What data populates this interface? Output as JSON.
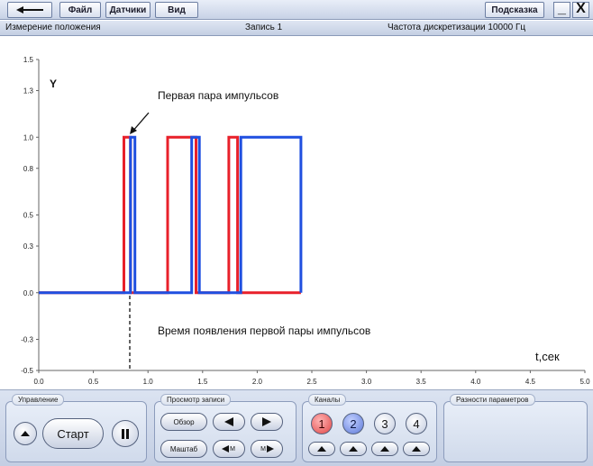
{
  "menu": {
    "back_icon": "arrow-left-icon",
    "file": "Файл",
    "sensors": "Датчики",
    "view": "Вид",
    "hint": "Подсказка",
    "minimize": "_",
    "close": "X"
  },
  "status": {
    "mode": "Измерение положения",
    "record": "Запись 1",
    "sampling": "Частота дискретизации 10000 Гц"
  },
  "chart_data": {
    "type": "line",
    "title": "",
    "xlabel": "t,сек",
    "ylabel": "Y",
    "xlim": [
      0,
      5
    ],
    "ylim": [
      -0.5,
      1.5
    ],
    "x_ticks": [
      "0.0",
      "0.5",
      "1.0",
      "1.5",
      "2.0",
      "2.5",
      "3.0",
      "3.5",
      "4.0",
      "4.5",
      "5.0"
    ],
    "y_ticks": [
      "-0.5",
      "-0.3",
      "0.0",
      "0.3",
      "0.5",
      "0.8",
      "1.0",
      "1.3",
      "1.5"
    ],
    "grid": false,
    "series": [
      {
        "color": "#e8202a",
        "x": [
          0,
          0.78,
          0.78,
          0.84,
          0.84,
          1.18,
          1.18,
          1.44,
          1.44,
          1.74,
          1.74,
          1.82,
          1.82,
          2.4
        ],
        "y": [
          0,
          0,
          1,
          1,
          0,
          0,
          1,
          1,
          0,
          0,
          1,
          1,
          0,
          0
        ]
      },
      {
        "color": "#1f4fe0",
        "x": [
          0,
          0.84,
          0.84,
          0.88,
          0.88,
          1.4,
          1.4,
          1.47,
          1.47,
          1.85,
          1.85,
          2.4,
          2.4
        ],
        "y": [
          0,
          0,
          1,
          1,
          0,
          0,
          1,
          1,
          0,
          0,
          1,
          1,
          0
        ]
      }
    ],
    "annotations": [
      {
        "text": "Первая пара импульсов"
      },
      {
        "text": "Время появления первой пары импульсов"
      }
    ]
  },
  "panels": {
    "control": {
      "title": "Управление",
      "start": "Старт"
    },
    "record_view": {
      "title": "Просмотр записи",
      "overview": "Обзор",
      "scale": "Маштаб",
      "m_left": "M",
      "m_right": "M"
    },
    "channels": {
      "title": "Каналы",
      "ch1": "1",
      "ch2": "2",
      "ch3": "3",
      "ch4": "4"
    },
    "diffs": {
      "title": "Разности параметров"
    }
  }
}
